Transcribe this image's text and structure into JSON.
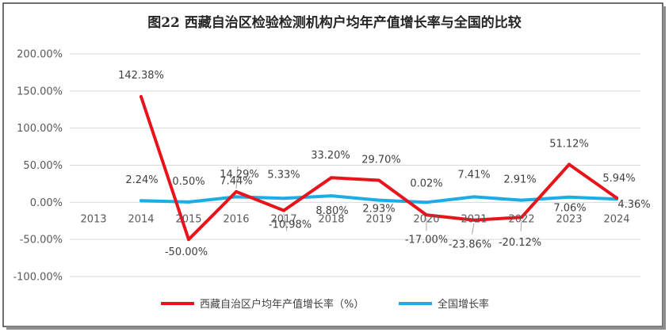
{
  "chart_data": {
    "type": "line",
    "title": "图22   西藏自治区检验检测机构户均年产值增长率与全国的比较",
    "categories": [
      "2013",
      "2014",
      "2015",
      "2016",
      "2017",
      "2018",
      "2019",
      "2020",
      "2021",
      "2022",
      "2023",
      "2024"
    ],
    "y_ticks": [
      "200.00%",
      "150.00%",
      "100.00%",
      "50.00%",
      "0.00%",
      "-50.00%",
      "-100.00%"
    ],
    "ylim": [
      -100,
      200
    ],
    "grid": true,
    "legend_position": "bottom",
    "series": [
      {
        "name": "西藏自治区户均年产值增长率（%）",
        "color": "#e8141b",
        "values": [
          null,
          142.38,
          -50.0,
          14.29,
          -10.98,
          33.2,
          29.7,
          -17.0,
          -23.86,
          -20.12,
          51.12,
          5.94
        ],
        "labels": [
          "",
          "142.38%",
          "-50.00%",
          "14.29%",
          "-10.98%",
          "33.20%",
          "29.70%",
          "-17.00%",
          "-23.86%",
          "-20.12%",
          "51.12%",
          "5.94%"
        ]
      },
      {
        "name": "全国增长率",
        "color": "#1cade4",
        "values": [
          null,
          2.24,
          0.5,
          7.44,
          5.33,
          8.8,
          2.93,
          0.02,
          7.41,
          2.91,
          7.06,
          4.36
        ],
        "labels": [
          "",
          "2.24%",
          "0.50%",
          "7.44%",
          "5.33%",
          "8.80%",
          "2.93%",
          "0.02%",
          "7.41%",
          "2.91%",
          "7.06%",
          "4.36%"
        ]
      }
    ]
  }
}
